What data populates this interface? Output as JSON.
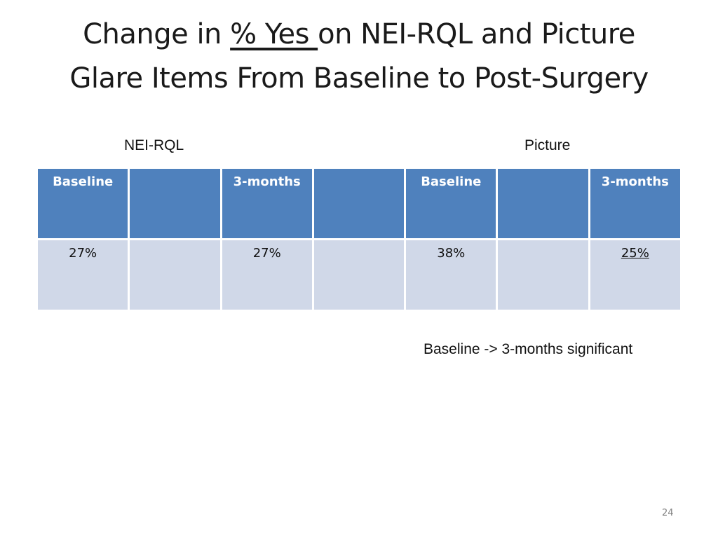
{
  "slide": {
    "title": {
      "part1": "Change in ",
      "underlined": "% Yes ",
      "part2": "on NEI-RQL and Picture",
      "line2": "Glare Items From Baseline to Post-Surgery"
    },
    "group_labels": {
      "nei_rql": "NEI-RQL",
      "picture": "Picture"
    },
    "table": {
      "headers": [
        "Baseline",
        "",
        "3-months",
        "",
        "Baseline",
        "",
        "3-months"
      ],
      "row": [
        "27%",
        "",
        "27%",
        "",
        "38%",
        "",
        "25%"
      ]
    },
    "note": "Baseline -> 3-months significant",
    "page_number": "24",
    "colors": {
      "header_fill": "#4f81bd",
      "cell_fill": "#d0d8e8"
    }
  }
}
